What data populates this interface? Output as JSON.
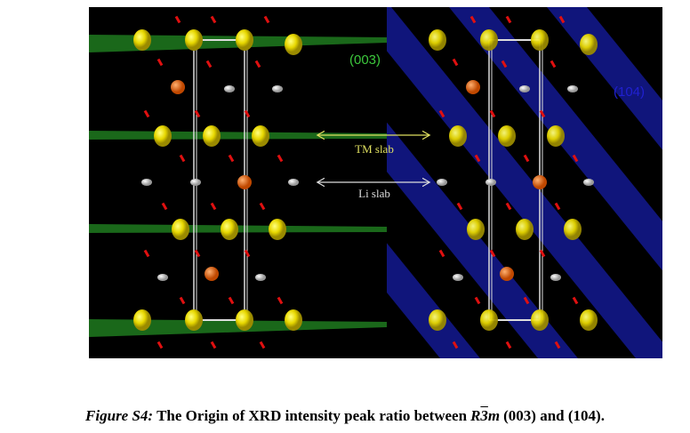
{
  "figure": {
    "panel_labels": {
      "left_plane": "(003)",
      "right_plane": "(104)"
    },
    "annotations": {
      "tm_slab": "TM slab",
      "li_slab": "Li slab"
    },
    "caption": {
      "label": "Figure S4:",
      "text": "The Origin of XRD intensity peak ratio between",
      "space_group": {
        "letter": "R",
        "number": "3",
        "mirror": "m"
      },
      "tail": "(003) and (104)."
    }
  }
}
